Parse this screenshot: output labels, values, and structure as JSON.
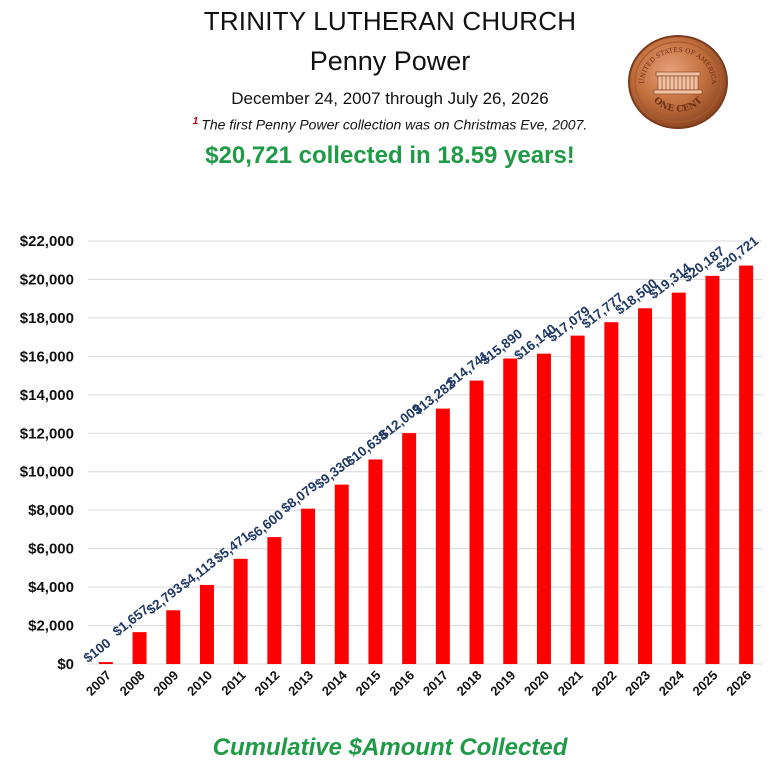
{
  "header": {
    "title": "TRINITY LUTHERAN CHURCH",
    "subtitle": "Penny Power",
    "date_range": "December 24, 2007 through July 26, 2026",
    "footnote_marker": "1",
    "footnote": "The first Penny Power collection was on Christmas Eve, 2007.",
    "headline": "$20,721 collected in 18.59 years!"
  },
  "penny": {
    "top_text": "UNITED STATES OF AMERICA",
    "bottom_text": "ONE CENT"
  },
  "footer": {
    "caption": "Cumulative $Amount Collected"
  },
  "chart_data": {
    "type": "bar",
    "categories": [
      "2007",
      "2008",
      "2009",
      "2010",
      "2011",
      "2012",
      "2013",
      "2014",
      "2015",
      "2016",
      "2017",
      "2018",
      "2019",
      "2020",
      "2021",
      "2022",
      "2023",
      "2024",
      "2025",
      "2026"
    ],
    "values": [
      100,
      1657,
      2793,
      4113,
      5471,
      6600,
      8079,
      9330,
      10638,
      12009,
      13282,
      14741,
      15890,
      16140,
      17079,
      17777,
      18500,
      19314,
      20187,
      20721
    ],
    "data_labels": [
      "$100",
      "$1,657",
      "$2,793",
      "$4,113",
      "$5,471",
      "$6,600",
      "$8,079",
      "$9,330",
      "$10,638",
      "$12,009",
      "$13,282",
      "$14,741",
      "$15,890",
      "$16,140",
      "$17,079",
      "$17,777",
      "$18,500",
      "$19,314",
      "$20,187",
      "$20,721"
    ],
    "y_ticks": [
      0,
      2000,
      4000,
      6000,
      8000,
      10000,
      12000,
      14000,
      16000,
      18000,
      20000,
      22000
    ],
    "y_tick_labels": [
      "$0",
      "$2,000",
      "$4,000",
      "$6,000",
      "$8,000",
      "$10,000",
      "$12,000",
      "$14,000",
      "$16,000",
      "$18,000",
      "$20,000",
      "$22,000"
    ],
    "ylim": [
      0,
      22000
    ],
    "grid": true,
    "bar_color": "#ff0000",
    "label_color": "#1f3864",
    "title": "",
    "xlabel": "",
    "ylabel": ""
  }
}
